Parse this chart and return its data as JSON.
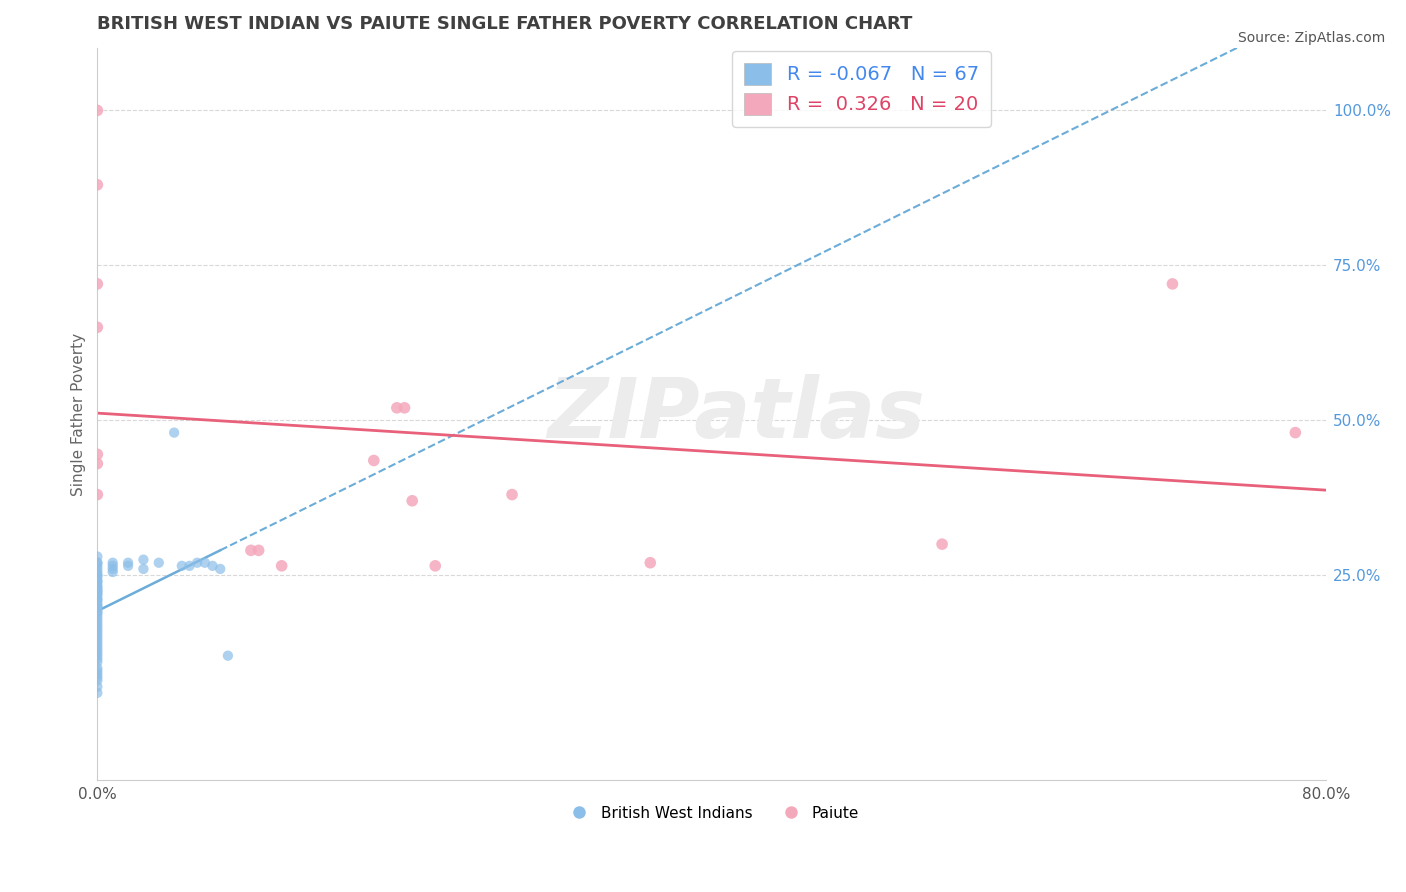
{
  "title": "BRITISH WEST INDIAN VS PAIUTE SINGLE FATHER POVERTY CORRELATION CHART",
  "source": "Source: ZipAtlas.com",
  "ylabel": "Single Father Poverty",
  "xlim": [
    0.0,
    0.8
  ],
  "ylim": [
    -0.08,
    1.1
  ],
  "watermark_text": "ZIPatlas",
  "bwi_color": "#8bbee8",
  "paiute_color": "#f4a8bc",
  "bwi_line_color": "#6bacd8",
  "paiute_line_color": "#e8607a",
  "bwi_R": -0.067,
  "bwi_N": 67,
  "paiute_R": 0.326,
  "paiute_N": 20,
  "bwi_points_x": [
    0.0,
    0.0,
    0.0,
    0.0,
    0.0,
    0.0,
    0.0,
    0.0,
    0.0,
    0.0,
    0.0,
    0.0,
    0.0,
    0.0,
    0.0,
    0.0,
    0.0,
    0.0,
    0.0,
    0.0,
    0.0,
    0.0,
    0.0,
    0.0,
    0.0,
    0.0,
    0.0,
    0.0,
    0.0,
    0.0,
    0.0,
    0.0,
    0.0,
    0.0,
    0.0,
    0.0,
    0.0,
    0.0,
    0.0,
    0.0,
    0.0,
    0.0,
    0.0,
    0.0,
    0.0,
    0.0,
    0.0,
    0.0,
    0.0,
    0.0,
    0.01,
    0.01,
    0.01,
    0.01,
    0.02,
    0.02,
    0.03,
    0.03,
    0.04,
    0.05,
    0.055,
    0.06,
    0.065,
    0.07,
    0.075,
    0.08,
    0.085
  ],
  "bwi_points_y": [
    0.28,
    0.27,
    0.27,
    0.265,
    0.26,
    0.255,
    0.25,
    0.25,
    0.245,
    0.24,
    0.24,
    0.235,
    0.23,
    0.23,
    0.225,
    0.225,
    0.22,
    0.22,
    0.215,
    0.21,
    0.21,
    0.205,
    0.2,
    0.2,
    0.195,
    0.19,
    0.19,
    0.185,
    0.18,
    0.175,
    0.17,
    0.165,
    0.16,
    0.155,
    0.15,
    0.145,
    0.14,
    0.135,
    0.13,
    0.125,
    0.12,
    0.115,
    0.11,
    0.1,
    0.095,
    0.09,
    0.085,
    0.08,
    0.07,
    0.06,
    0.27,
    0.265,
    0.26,
    0.255,
    0.27,
    0.265,
    0.275,
    0.26,
    0.27,
    0.48,
    0.265,
    0.265,
    0.27,
    0.27,
    0.265,
    0.26,
    0.12
  ],
  "paiute_points_x": [
    0.0,
    0.0,
    0.0,
    0.0,
    0.0,
    0.0,
    0.0,
    0.1,
    0.105,
    0.12,
    0.18,
    0.195,
    0.2,
    0.205,
    0.22,
    0.27,
    0.36,
    0.55,
    0.7,
    0.78
  ],
  "paiute_points_y": [
    1.0,
    0.88,
    0.72,
    0.65,
    0.445,
    0.43,
    0.38,
    0.29,
    0.29,
    0.265,
    0.435,
    0.52,
    0.52,
    0.37,
    0.265,
    0.38,
    0.27,
    0.3,
    0.72,
    0.48
  ],
  "background_color": "#ffffff",
  "grid_color": "#d8d8d8",
  "title_color": "#404040",
  "axis_label_color": "#5599dd",
  "ytick_color": "#5599dd",
  "xtick_color": "#555555",
  "legend_fontsize": 14,
  "title_fontsize": 13
}
